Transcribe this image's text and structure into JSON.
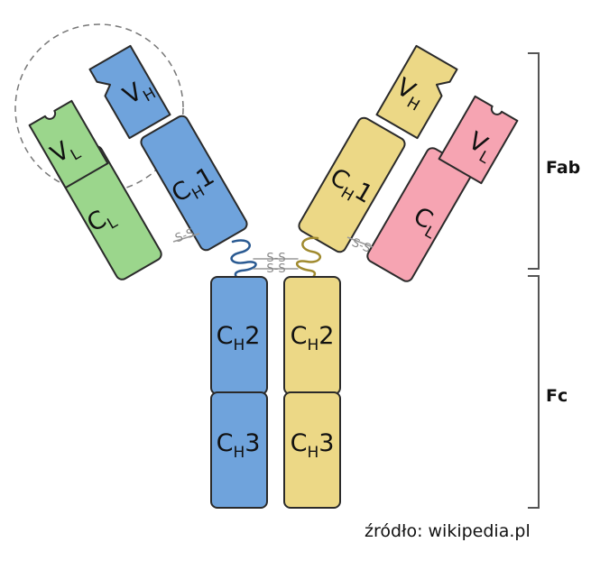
{
  "colors": {
    "heavy_left": "#6fa3dc",
    "heavy_right": "#ecd886",
    "light_left": "#9bd68c",
    "light_right": "#f6a4b2",
    "outline": "#2a2a2a",
    "hinge_left": "#2a5a92",
    "hinge_right": "#a08a2e",
    "disulfide": "#999999"
  },
  "domains": {
    "left_vh": {
      "main": "V",
      "sub": "H"
    },
    "left_ch1": {
      "main": "C",
      "sub": "H",
      "suffix": "1"
    },
    "left_vl": {
      "main": "V",
      "sub": "L"
    },
    "left_cl": {
      "main": "C",
      "sub": "L"
    },
    "right_vh": {
      "main": "V",
      "sub": "H"
    },
    "right_ch1": {
      "main": "C",
      "sub": "H",
      "suffix": "1"
    },
    "right_vl": {
      "main": "V",
      "sub": "L"
    },
    "right_cl": {
      "main": "C",
      "sub": "L"
    },
    "left_ch2": {
      "main": "C",
      "sub": "H",
      "suffix": "2"
    },
    "left_ch3": {
      "main": "C",
      "sub": "H",
      "suffix": "3"
    },
    "right_ch2": {
      "main": "C",
      "sub": "H",
      "suffix": "2"
    },
    "right_ch3": {
      "main": "C",
      "sub": "H",
      "suffix": "3"
    }
  },
  "disulfide_label": "S-S",
  "regions": {
    "fab": "Fab",
    "fc": "Fc"
  },
  "source": "źródło: wikipedia.pl"
}
